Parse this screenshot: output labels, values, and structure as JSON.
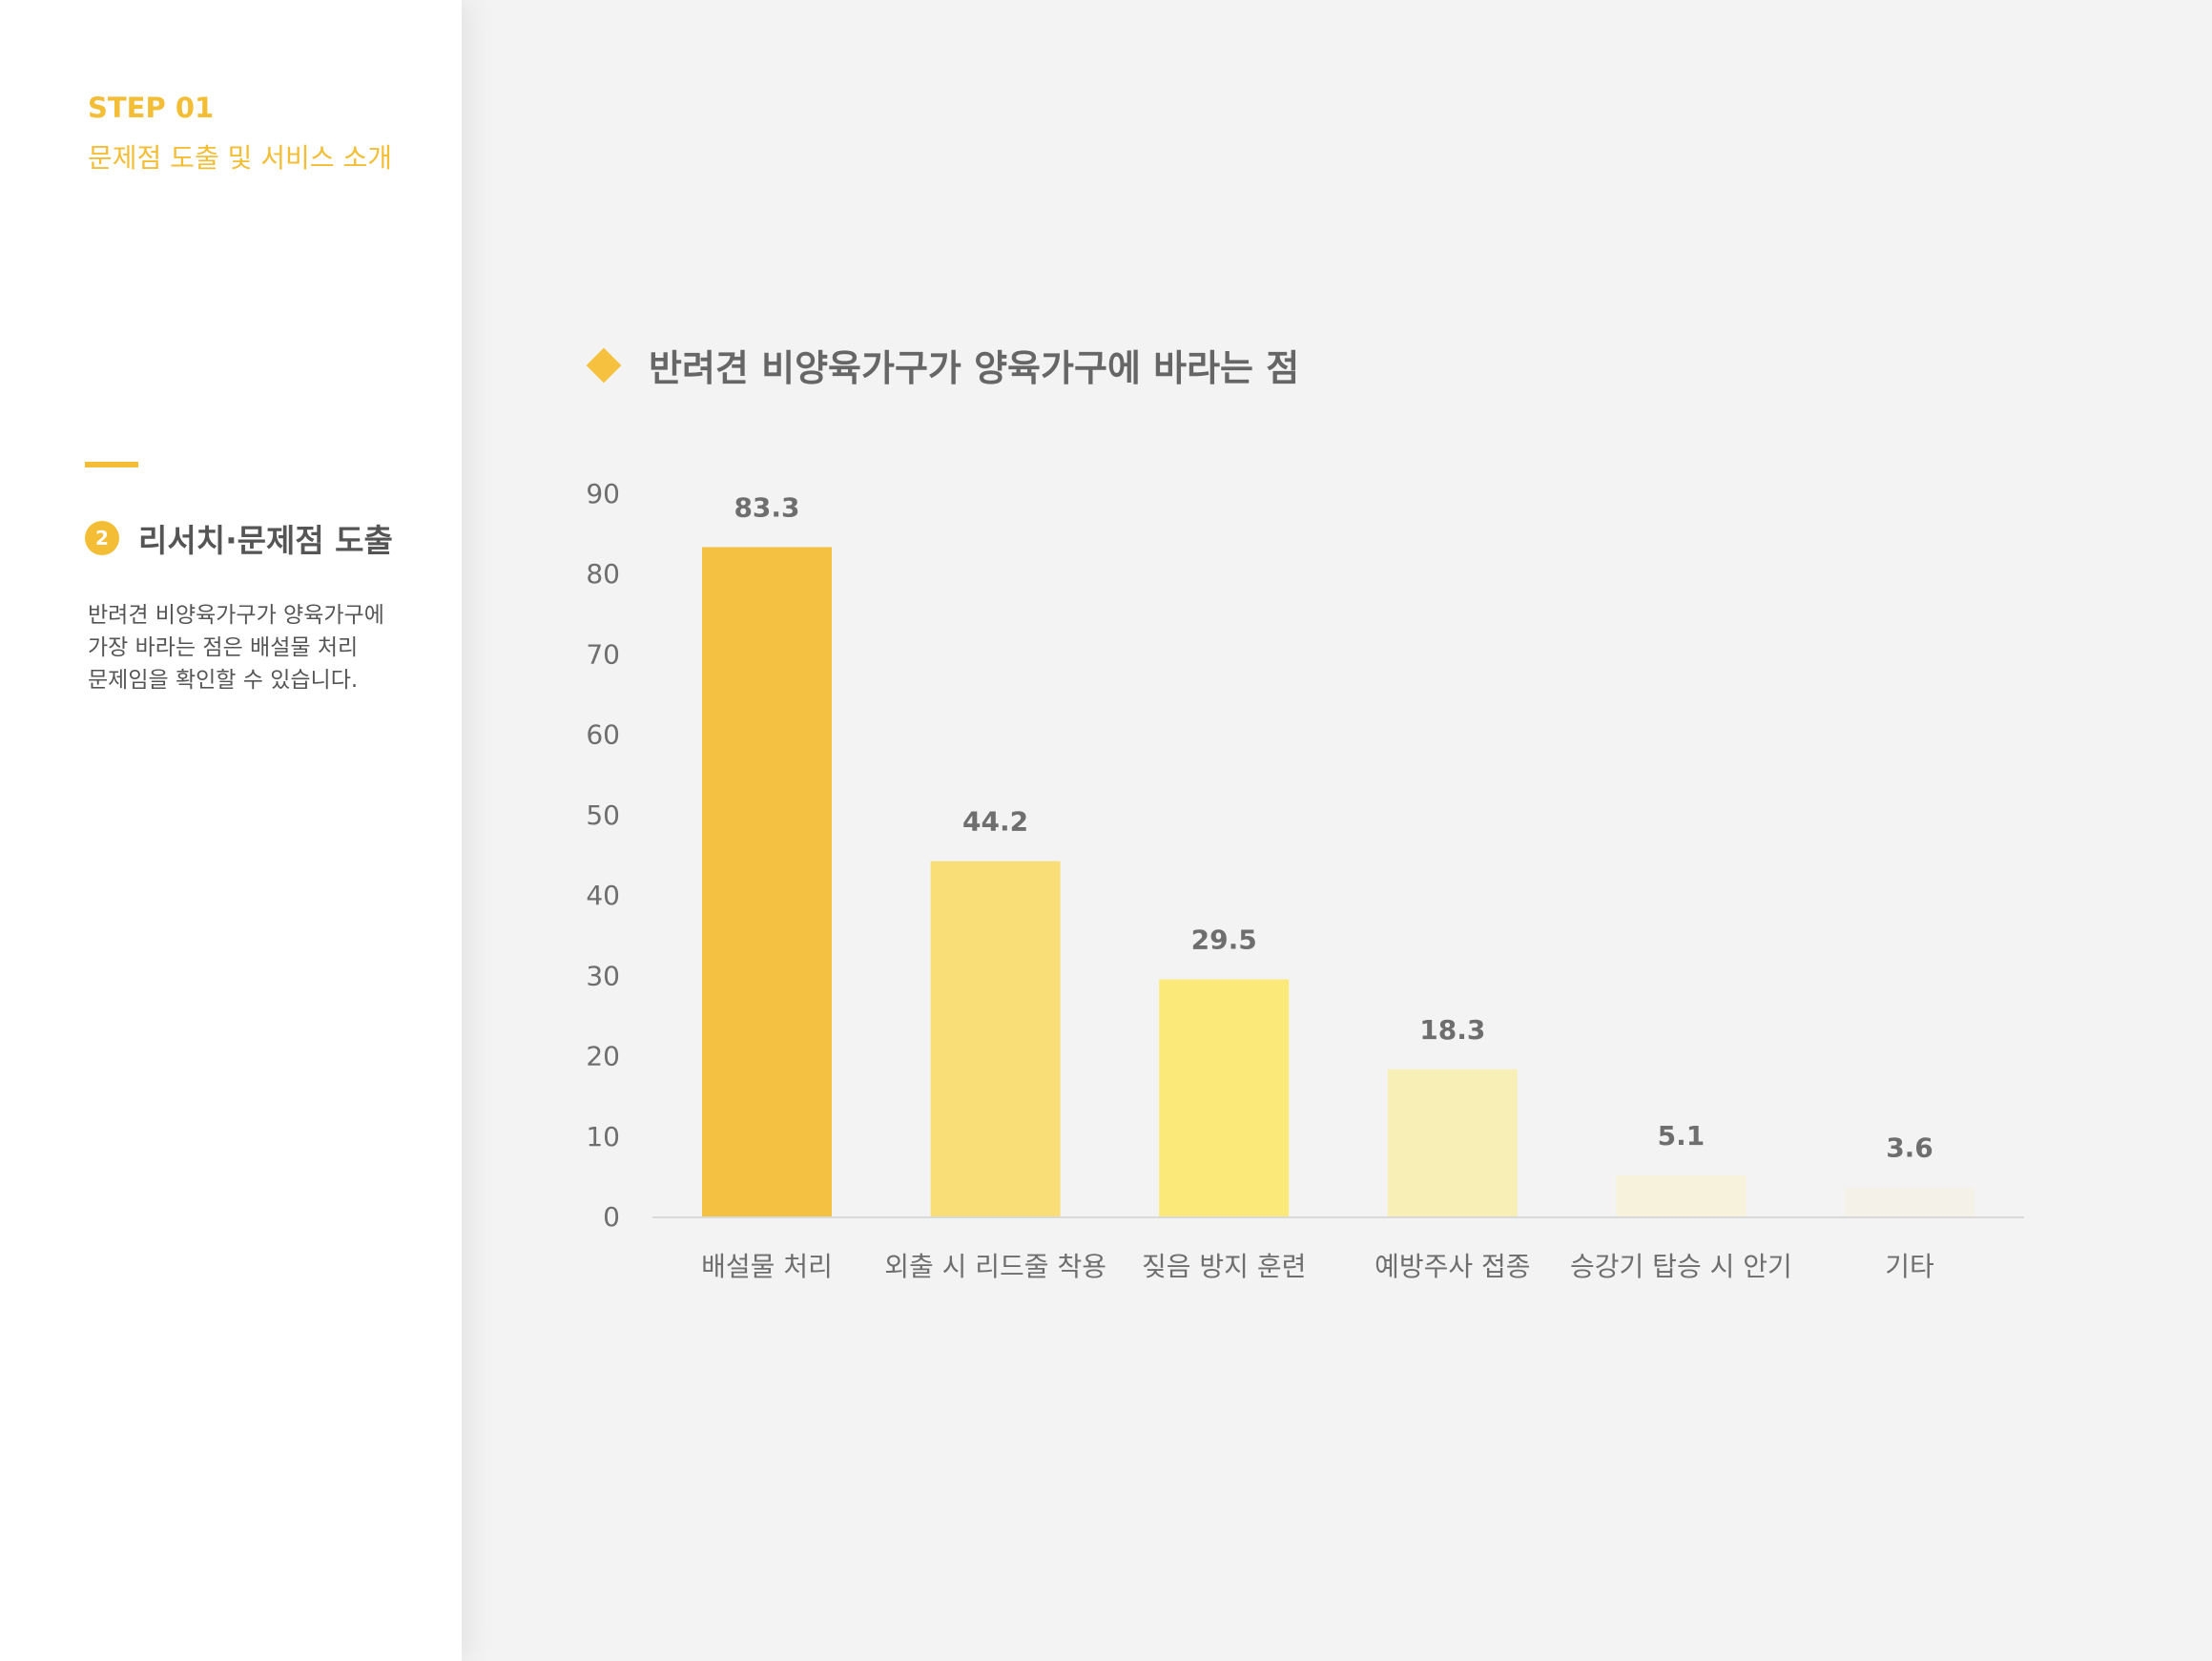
{
  "sidebar": {
    "step": "STEP 01",
    "step_subtitle": "문제점 도출 및 서비스 소개",
    "section_number": "2",
    "section_title": "리서치·문제점 도출",
    "description_lines": [
      "반려견 비양육가구가 양육가구에",
      "가장 바라는 점은 배설물 처리",
      "문제임을 확인할 수 있습니다."
    ]
  },
  "colors": {
    "accent": "#f3bd35"
  },
  "chart_data": {
    "type": "bar",
    "title": "반려견 비양육가구가 양육가구에 바라는 점",
    "xlabel": "",
    "ylabel": "",
    "categories": [
      "배설물 처리",
      "외출 시 리드줄 착용",
      "짖음 방지 훈련",
      "예방주사 접종",
      "승강기 탑승 시 안기",
      "기타"
    ],
    "values": [
      83.3,
      44.2,
      29.5,
      18.3,
      5.1,
      3.6
    ],
    "value_labels": [
      "83.3",
      "44.2",
      "29.5",
      "18.3",
      "5.1",
      "3.6"
    ],
    "bar_colors": [
      "#f5c142",
      "#f9dd76",
      "#fbea79",
      "#f8efb6",
      "#f6f2dc",
      "#f3f1e8"
    ],
    "ylim": [
      0,
      90
    ],
    "yticks": [
      0,
      10,
      20,
      30,
      40,
      50,
      60,
      70,
      80,
      90
    ],
    "grid": false,
    "legend": "none"
  }
}
